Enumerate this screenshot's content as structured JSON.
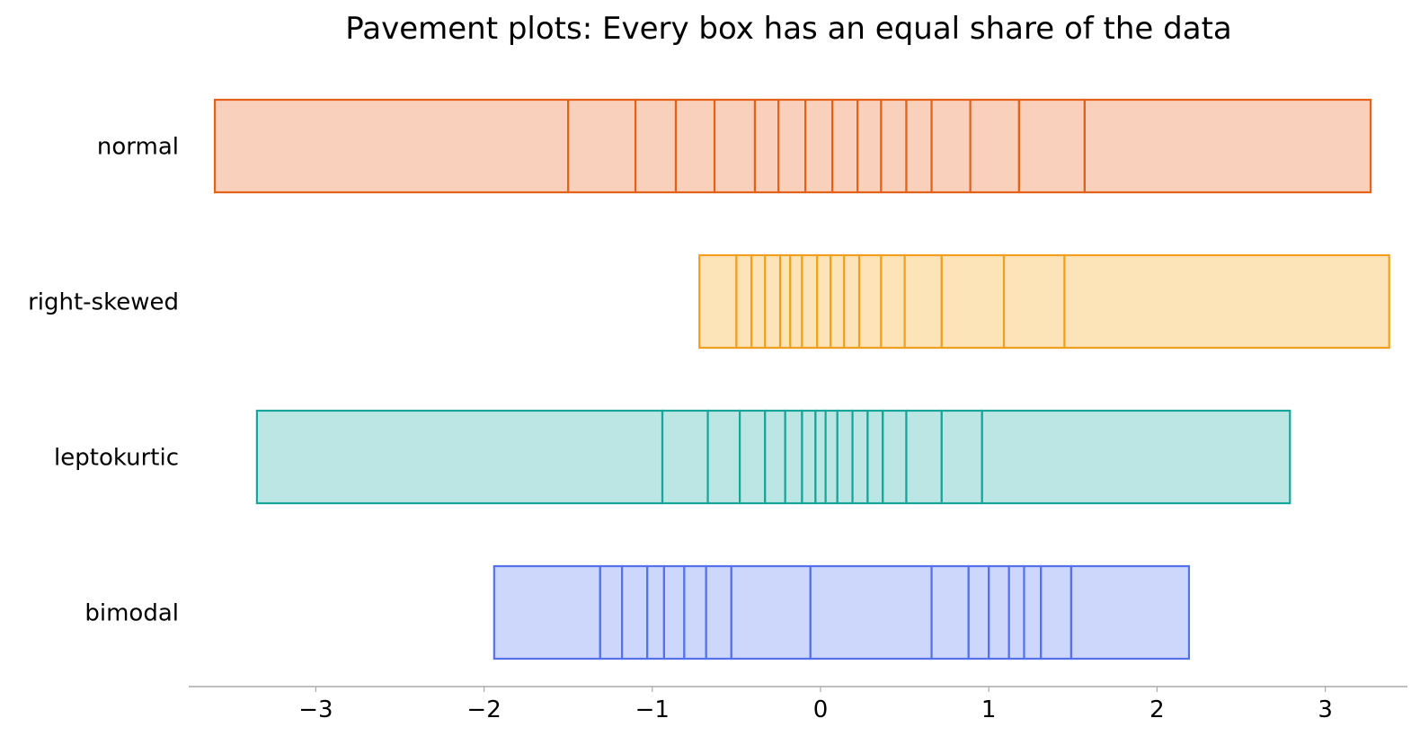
{
  "chart_data": {
    "type": "box",
    "title": "Pavement plots: Every box has an equal share of the data",
    "xlabel": "",
    "ylabel": "",
    "xlim": [
      -3.75,
      3.5
    ],
    "xticks": [
      -3,
      -2,
      -1,
      0,
      1,
      2,
      3
    ],
    "xtick_labels": [
      "−3",
      "−2",
      "−1",
      "0",
      "1",
      "2",
      "3"
    ],
    "grid": false,
    "series": [
      {
        "name": "normal",
        "edge_color": "#e5611a",
        "fill_color": "#f9d0bb",
        "boundaries": [
          -3.6,
          -1.5,
          -1.1,
          -0.86,
          -0.63,
          -0.39,
          -0.25,
          -0.09,
          0.07,
          0.22,
          0.36,
          0.51,
          0.66,
          0.89,
          1.18,
          1.57,
          3.27
        ]
      },
      {
        "name": "right-skewed",
        "edge_color": "#f0a01e",
        "fill_color": "#fce3b8",
        "boundaries": [
          -0.72,
          -0.5,
          -0.41,
          -0.33,
          -0.24,
          -0.18,
          -0.11,
          -0.02,
          0.06,
          0.14,
          0.23,
          0.36,
          0.5,
          0.72,
          1.09,
          1.45,
          3.38
        ]
      },
      {
        "name": "leptokurtic",
        "edge_color": "#17a49b",
        "fill_color": "#bce6e4",
        "boundaries": [
          -3.35,
          -0.94,
          -0.67,
          -0.48,
          -0.33,
          -0.21,
          -0.11,
          -0.03,
          0.03,
          0.1,
          0.19,
          0.28,
          0.37,
          0.51,
          0.72,
          0.96,
          2.79
        ]
      },
      {
        "name": "bimodal",
        "edge_color": "#5470ea",
        "fill_color": "#cdd6fb",
        "boundaries": [
          -1.94,
          -1.31,
          -1.18,
          -1.03,
          -0.93,
          -0.81,
          -0.68,
          -0.53,
          -0.06,
          0.66,
          0.88,
          1.0,
          1.12,
          1.21,
          1.31,
          1.49,
          2.19
        ]
      }
    ]
  }
}
